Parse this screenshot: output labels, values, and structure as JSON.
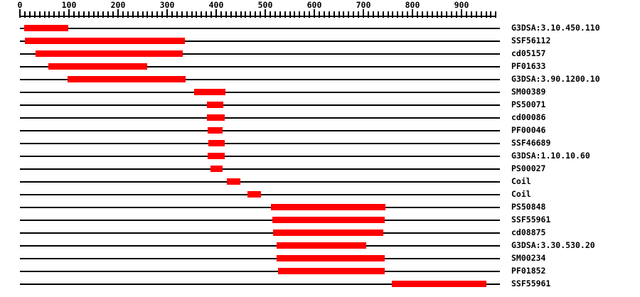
{
  "chart_data": {
    "type": "bar",
    "subtype": "protein-domain-architecture",
    "orientation": "horizontal-spans",
    "grid": false,
    "legend": false,
    "axis": {
      "min": 0,
      "max": 970,
      "minor_step": 10,
      "major_step": 100,
      "tick_labels": [
        "0",
        "100",
        "200",
        "300",
        "400",
        "500",
        "600",
        "700",
        "800",
        "900"
      ]
    },
    "colors": {
      "bar": "#ff0000",
      "line": "#000000",
      "text": "#000000",
      "background": "#ffffff"
    },
    "rows": [
      {
        "label": "G3DSA:3.10.450.110",
        "start": 9,
        "end": 99
      },
      {
        "label": "SSF56112",
        "start": 10,
        "end": 336
      },
      {
        "label": "cd05157",
        "start": 32,
        "end": 332
      },
      {
        "label": "PF01633",
        "start": 58,
        "end": 259
      },
      {
        "label": "G3DSA:3.90.1200.10",
        "start": 97,
        "end": 338
      },
      {
        "label": "SM00389",
        "start": 355,
        "end": 419
      },
      {
        "label": "PS50071",
        "start": 381,
        "end": 414
      },
      {
        "label": "cd00086",
        "start": 381,
        "end": 417
      },
      {
        "label": "PF00046",
        "start": 383,
        "end": 413
      },
      {
        "label": "SSF46689",
        "start": 384,
        "end": 417
      },
      {
        "label": "G3DSA:1.10.10.60",
        "start": 383,
        "end": 417
      },
      {
        "label": "PS00027",
        "start": 388,
        "end": 413
      },
      {
        "label": "Coil",
        "start": 422,
        "end": 449
      },
      {
        "label": "Coil",
        "start": 464,
        "end": 491
      },
      {
        "label": "PS50848",
        "start": 512,
        "end": 745
      },
      {
        "label": "SSF55961",
        "start": 514,
        "end": 743
      },
      {
        "label": "cd08875",
        "start": 516,
        "end": 740
      },
      {
        "label": "G3DSA:3.30.530.20",
        "start": 523,
        "end": 706
      },
      {
        "label": "SM00234",
        "start": 523,
        "end": 743
      },
      {
        "label": "PF01852",
        "start": 526,
        "end": 743
      },
      {
        "label": "SSF55961",
        "start": 758,
        "end": 951
      }
    ]
  }
}
